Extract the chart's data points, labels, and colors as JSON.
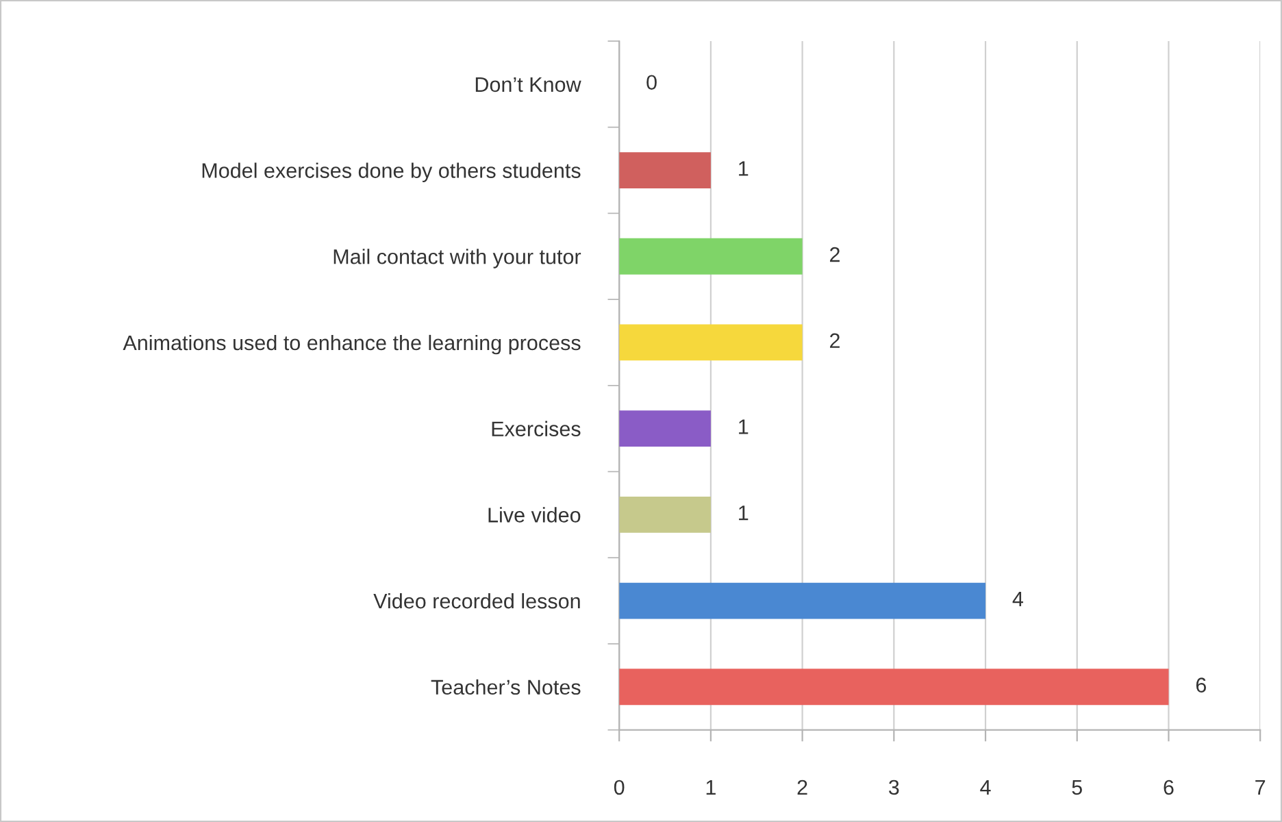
{
  "chart_data": {
    "type": "bar",
    "orientation": "horizontal",
    "categories": [
      "Don’t Know",
      "Model exercises done by others students",
      "Mail contact with your tutor",
      "Animations used to enhance the learning process",
      "Exercises",
      "Live video",
      "Video recorded lesson",
      "Teacher’s Notes"
    ],
    "values": [
      0,
      1,
      2,
      2,
      1,
      1,
      4,
      6
    ],
    "colors": [
      "#4f81bd",
      "#d0605e",
      "#7fd468",
      "#f6d83c",
      "#8a5cc6",
      "#c6c98c",
      "#4a88d2",
      "#e8625e"
    ],
    "xlim": [
      0,
      7
    ],
    "xticks": [
      0,
      1,
      2,
      3,
      4,
      5,
      6,
      7
    ],
    "grid": "x",
    "data_labels": true
  }
}
